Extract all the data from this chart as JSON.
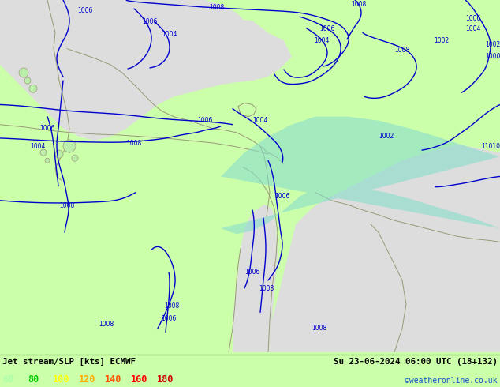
{
  "title_left": "Jet stream/SLP [kts] ECMWF",
  "title_right": "Su 23-06-2024 06:00 UTC (18+132)",
  "credit": "©weatheronline.co.uk",
  "legend_values": [
    "60",
    "80",
    "100",
    "120",
    "140",
    "160",
    "180"
  ],
  "legend_colors": [
    "#aaffaa",
    "#00cc00",
    "#ffff00",
    "#ffaa00",
    "#ff5500",
    "#ff0000",
    "#cc0000"
  ],
  "bg_color": "#ccffaa",
  "sea_color": "#dddddd",
  "land_color": "#bbeeaa",
  "jet_color": "#88ddcc",
  "contour_color": "#0000cc",
  "coast_color": "#999977",
  "fig_width": 6.34,
  "fig_height": 4.9,
  "dpi": 100
}
